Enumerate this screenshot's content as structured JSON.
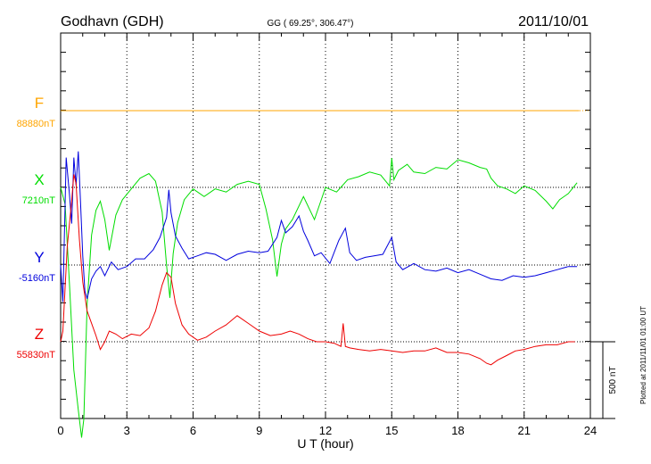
{
  "header": {
    "station": "Godhavn (GDH)",
    "coords": "GG ( 69.25°, 306.47°)",
    "date": "2011/10/01"
  },
  "side_note": "Plotted at 2011/11/01 01:00 UT",
  "scale_label": "500 nT",
  "colors": {
    "F": "#ffa500",
    "X": "#00dd00",
    "Y": "#0000dd",
    "Z": "#ee0000",
    "axis": "#000000",
    "grid": "#000000"
  },
  "chart_data": {
    "type": "line",
    "xlabel": "U T (hour)",
    "xlim": [
      0,
      24
    ],
    "x_ticks": [
      "0",
      "3",
      "6",
      "9",
      "12",
      "15",
      "18",
      "21",
      "24"
    ],
    "y_unit": "nT",
    "scale_bar_nT": 500,
    "grid": "dotted vertical every 3 h; dotted baseline per component",
    "series": [
      {
        "name": "F",
        "baseline_label": "88880nT",
        "baseline": 88880,
        "x": [
          0,
          23.5
        ],
        "y": [
          88880,
          88880
        ]
      },
      {
        "name": "X",
        "baseline_label": "7210nT",
        "baseline": 7210,
        "x": [
          0,
          0.2,
          0.4,
          0.6,
          0.8,
          0.95,
          1.05,
          1.2,
          1.4,
          1.6,
          1.8,
          2.0,
          2.2,
          2.5,
          2.8,
          3.2,
          3.6,
          4.0,
          4.3,
          4.6,
          4.8,
          4.95,
          5.1,
          5.3,
          5.6,
          6.0,
          6.5,
          7.0,
          7.5,
          8.0,
          8.5,
          9.0,
          9.3,
          9.6,
          9.8,
          10.0,
          10.2,
          10.5,
          11.0,
          11.5,
          12.0,
          12.5,
          13.0,
          13.5,
          14.0,
          14.5,
          14.9,
          15.0,
          15.1,
          15.3,
          15.7,
          16.0,
          16.5,
          17.0,
          17.5,
          18.0,
          18.5,
          19.0,
          19.3,
          19.5,
          19.8,
          20.2,
          20.6,
          21.0,
          21.5,
          22.0,
          22.3,
          22.6,
          23.0,
          23.4
        ],
        "y": [
          7210,
          7100,
          6580,
          6020,
          5760,
          5580,
          5700,
          6450,
          6900,
          7060,
          7120,
          7000,
          6800,
          7030,
          7130,
          7200,
          7270,
          7300,
          7250,
          7050,
          6700,
          6490,
          6780,
          6980,
          7130,
          7200,
          7150,
          7200,
          7180,
          7230,
          7250,
          7230,
          7070,
          6870,
          6630,
          6840,
          6940,
          7000,
          7150,
          7000,
          7210,
          7180,
          7260,
          7280,
          7310,
          7290,
          7220,
          7400,
          7260,
          7320,
          7360,
          7310,
          7300,
          7340,
          7330,
          7390,
          7370,
          7340,
          7330,
          7270,
          7220,
          7200,
          7170,
          7220,
          7190,
          7120,
          7070,
          7130,
          7170,
          7240
        ]
      },
      {
        "name": "Y",
        "baseline_label": "-5160nT",
        "baseline": -5160,
        "x": [
          0,
          0.1,
          0.25,
          0.4,
          0.5,
          0.6,
          0.7,
          0.8,
          0.9,
          1.0,
          1.1,
          1.2,
          1.4,
          1.6,
          1.8,
          2.0,
          2.3,
          2.6,
          3.0,
          3.4,
          3.8,
          4.2,
          4.5,
          4.8,
          4.9,
          5.0,
          5.2,
          5.5,
          5.8,
          6.2,
          6.6,
          7.0,
          7.5,
          8.0,
          8.5,
          9.0,
          9.4,
          9.8,
          10.0,
          10.2,
          10.5,
          10.8,
          11.0,
          11.2,
          11.5,
          11.8,
          12.2,
          12.6,
          12.9,
          13.1,
          13.4,
          13.8,
          14.2,
          14.6,
          15.0,
          15.2,
          15.5,
          16.0,
          16.5,
          17.0,
          17.5,
          18.0,
          18.5,
          19.0,
          19.5,
          20.0,
          20.5,
          21.0,
          21.5,
          22.0,
          22.5,
          23.0,
          23.4
        ],
        "y": [
          -5160,
          -5400,
          -4460,
          -4700,
          -4890,
          -4460,
          -4640,
          -4420,
          -4750,
          -5100,
          -5330,
          -5380,
          -5250,
          -5200,
          -5170,
          -5230,
          -5140,
          -5190,
          -5170,
          -5120,
          -5120,
          -5060,
          -4980,
          -4850,
          -4670,
          -4820,
          -4970,
          -5050,
          -5120,
          -5100,
          -5080,
          -5090,
          -5130,
          -5090,
          -5070,
          -5080,
          -5070,
          -4980,
          -4870,
          -4950,
          -4910,
          -4840,
          -4940,
          -5000,
          -5100,
          -5080,
          -5150,
          -5000,
          -4920,
          -5080,
          -5130,
          -5110,
          -5100,
          -5090,
          -4980,
          -5140,
          -5190,
          -5150,
          -5190,
          -5200,
          -5180,
          -5210,
          -5190,
          -5220,
          -5250,
          -5260,
          -5230,
          -5240,
          -5230,
          -5210,
          -5190,
          -5170,
          -5170
        ]
      },
      {
        "name": "Z",
        "baseline_label": "55830nT",
        "baseline": 55830,
        "x": [
          0,
          0.1,
          0.3,
          0.5,
          0.6,
          0.7,
          0.85,
          1.0,
          1.2,
          1.4,
          1.6,
          1.8,
          2.0,
          2.2,
          2.5,
          2.8,
          3.2,
          3.6,
          4.0,
          4.3,
          4.6,
          4.8,
          5.0,
          5.2,
          5.5,
          5.8,
          6.2,
          6.6,
          7.0,
          7.5,
          8.0,
          8.5,
          9.0,
          9.5,
          10.0,
          10.4,
          10.8,
          11.2,
          11.6,
          12.0,
          12.4,
          12.7,
          12.8,
          12.9,
          13.1,
          13.5,
          14.0,
          14.5,
          15.0,
          15.5,
          16.0,
          16.5,
          17.0,
          17.5,
          18.0,
          18.5,
          19.0,
          19.3,
          19.5,
          19.8,
          20.2,
          20.6,
          21.0,
          21.5,
          22.0,
          22.5,
          23.0,
          23.3
        ],
        "y": [
          55830,
          55900,
          56450,
          56750,
          56920,
          56860,
          56500,
          56220,
          56030,
          55950,
          55870,
          55780,
          55830,
          55900,
          55880,
          55850,
          55880,
          55870,
          55920,
          56030,
          56200,
          56280,
          56250,
          56080,
          55940,
          55880,
          55840,
          55860,
          55900,
          55940,
          56000,
          55950,
          55900,
          55870,
          55880,
          55900,
          55880,
          55850,
          55830,
          55830,
          55820,
          55800,
          55950,
          55800,
          55790,
          55780,
          55770,
          55780,
          55770,
          55760,
          55770,
          55770,
          55790,
          55760,
          55760,
          55750,
          55720,
          55690,
          55680,
          55710,
          55740,
          55770,
          55780,
          55800,
          55810,
          55810,
          55830,
          55830
        ]
      }
    ]
  }
}
